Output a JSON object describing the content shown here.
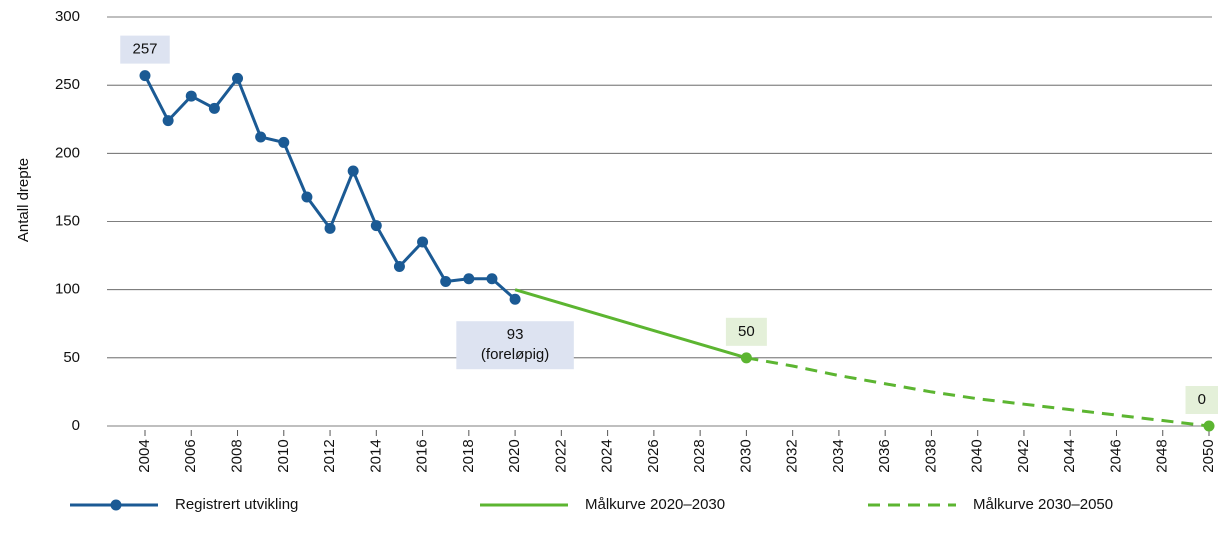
{
  "chart_data": {
    "type": "line",
    "ylabel": "Antall drepte",
    "xlim": [
      2004,
      2050
    ],
    "xticks": [
      2004,
      2006,
      2008,
      2010,
      2012,
      2014,
      2016,
      2018,
      2020,
      2022,
      2024,
      2026,
      2028,
      2030,
      2032,
      2034,
      2036,
      2038,
      2040,
      2042,
      2044,
      2046,
      2048,
      2050
    ],
    "ylim": [
      0,
      300
    ],
    "yticks": [
      0,
      50,
      100,
      150,
      200,
      250,
      300
    ],
    "grid": true,
    "legend": "bottom",
    "series": [
      {
        "name": "Registrert utvikling",
        "color": "#1b5a94",
        "dash": false,
        "markers": "all",
        "label_fill": "#dde3f1",
        "x": [
          2004,
          2005,
          2006,
          2007,
          2008,
          2009,
          2010,
          2011,
          2012,
          2013,
          2014,
          2015,
          2016,
          2017,
          2018,
          2019,
          2020
        ],
        "values": [
          257,
          224,
          242,
          233,
          255,
          212,
          208,
          168,
          145,
          187,
          147,
          117,
          135,
          106,
          108,
          108,
          93
        ],
        "value_labels": [
          "257",
          null,
          null,
          null,
          null,
          null,
          null,
          null,
          null,
          null,
          null,
          null,
          null,
          null,
          null,
          null,
          "93\n(foreløpig)"
        ]
      },
      {
        "name": "Målkurve 2020–2030",
        "color": "#5cb531",
        "dash": false,
        "markers": "labeled",
        "label_fill": "#e4f0d9",
        "x": [
          2020,
          2030
        ],
        "values": [
          100,
          50
        ],
        "value_labels": [
          null,
          "50"
        ]
      },
      {
        "name": "Målkurve 2030–2050",
        "color": "#5cb531",
        "dash": true,
        "markers": "labeled",
        "label_fill": "#e4f0d9",
        "x": [
          2030,
          2032,
          2034,
          2036,
          2038,
          2040,
          2042,
          2044,
          2046,
          2048,
          2050
        ],
        "values": [
          50,
          44,
          37,
          31,
          25,
          20,
          16,
          12,
          8,
          4,
          0
        ],
        "value_labels": [
          null,
          null,
          null,
          null,
          null,
          null,
          null,
          null,
          null,
          null,
          "0"
        ]
      }
    ]
  }
}
